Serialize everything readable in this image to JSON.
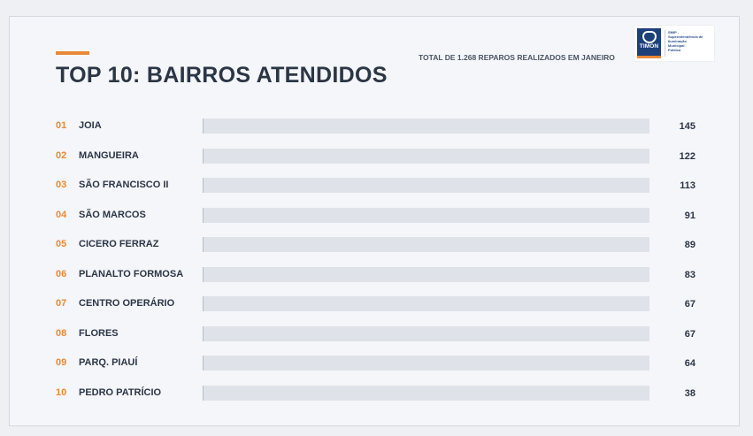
{
  "header": {
    "title": "TOP 10: BAIRROS ATENDIDOS",
    "subtitle": "TOTAL DE 1.268 REPAROS REALIZADOS EM JANEIRO"
  },
  "logo": {
    "seal_text": "TIMON",
    "org_lines": [
      "SMIP -",
      "Superintendência de",
      "Iluminação",
      "Municipal",
      "Pública"
    ]
  },
  "colors": {
    "accent": "#e8893a",
    "title": "#2b3646",
    "track": "#dfe3e9"
  },
  "chart_data": {
    "type": "bar",
    "orientation": "horizontal",
    "title": "TOP 10: BAIRROS ATENDIDOS",
    "ranks": [
      "01",
      "02",
      "03",
      "04",
      "05",
      "06",
      "07",
      "08",
      "09",
      "10"
    ],
    "categories": [
      "JOIA",
      "MANGUEIRA",
      "SÃO FRANCISCO II",
      "SÃO MARCOS",
      "CICERO FERRAZ",
      "PLANALTO FORMOSA",
      "CENTRO OPERÁRIO",
      "FLORES",
      "PARQ. PIAUÍ",
      "PEDRO PATRÍCIO"
    ],
    "values": [
      145,
      122,
      113,
      91,
      89,
      83,
      67,
      67,
      64,
      38
    ],
    "grid": false,
    "legend": "none"
  }
}
